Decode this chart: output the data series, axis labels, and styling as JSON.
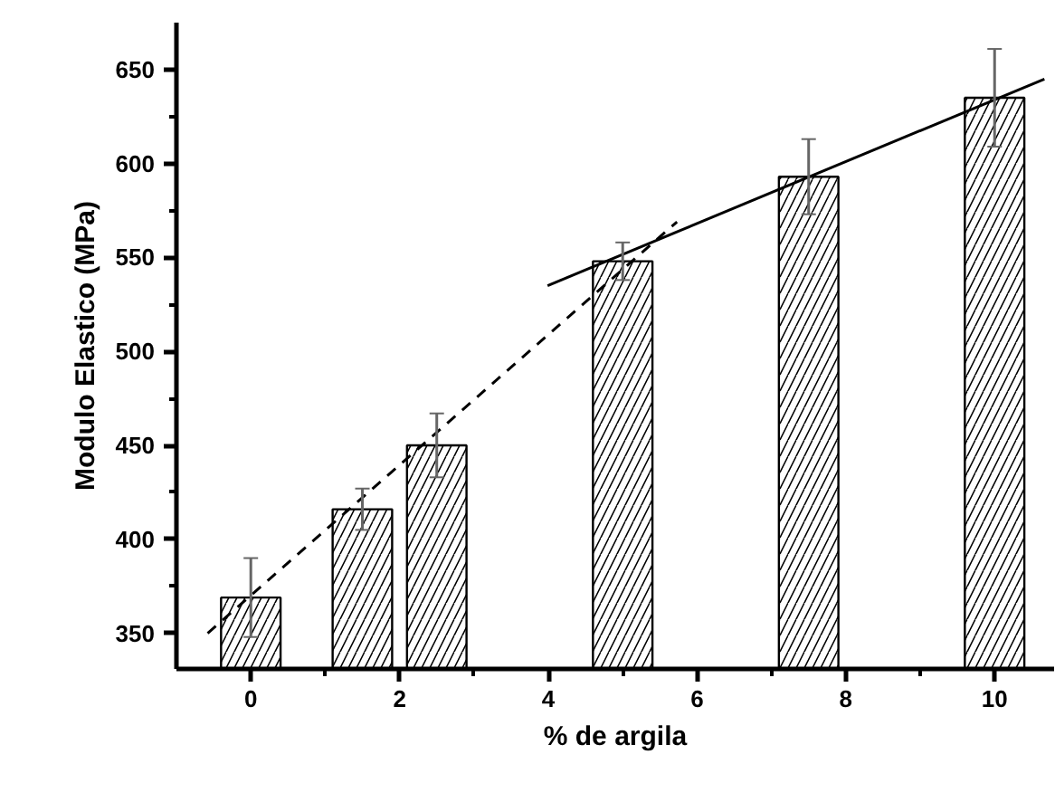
{
  "chart_data": {
    "type": "bar",
    "xlabel": "% de argila",
    "ylabel": "Modulo Elastico (MPa)",
    "xlim": [
      -1,
      10.8
    ],
    "xticks": [
      0,
      2,
      4,
      6,
      8,
      10
    ],
    "ylim": [
      331,
      675
    ],
    "yticks": [
      350,
      400,
      450,
      500,
      550,
      600,
      650
    ],
    "grid": false,
    "series": [
      {
        "color": "#000000",
        "x": [
          0,
          1.5,
          2.5,
          5,
          7.5,
          10
        ],
        "values": [
          369,
          416,
          450,
          548,
          593,
          635
        ],
        "errors": [
          21,
          11,
          17,
          10,
          20,
          26
        ]
      },
      {
        "type": "line",
        "line_style": "dashed",
        "color": "#000000",
        "x": [
          -0.58,
          5.73
        ],
        "values": [
          350,
          569
        ]
      },
      {
        "type": "line",
        "line_style": "solid",
        "color": "#000000",
        "x": [
          3.99,
          10.67
        ],
        "values": [
          535,
          645
        ]
      }
    ]
  }
}
